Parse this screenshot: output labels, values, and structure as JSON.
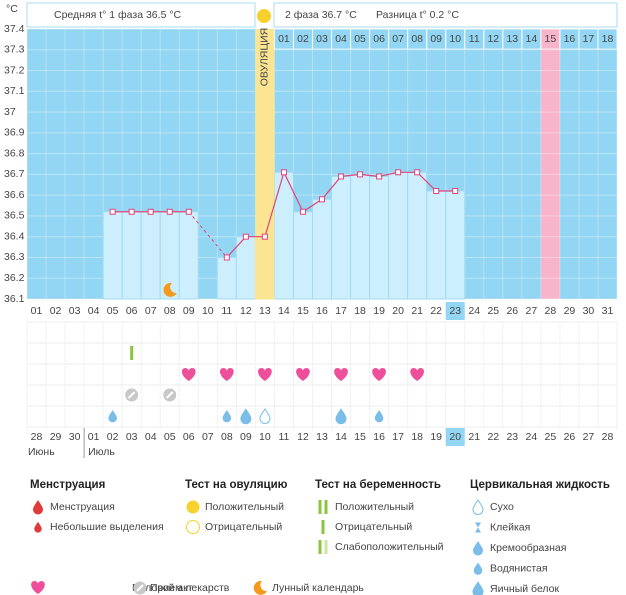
{
  "header": {
    "phase1": "Средняя t° 1 фаза 36.5 °C",
    "phase2": "2 фаза 36.7 °C",
    "difference": "Разница t° 0.2 °C"
  },
  "chart_data": {
    "type": "line",
    "y_unit": "°C",
    "ovulation_label": "ОВУЛЯЦИЯ",
    "ovulation_x": "13",
    "x": [
      "01",
      "02",
      "03",
      "04",
      "05",
      "06",
      "07",
      "08",
      "09",
      "10",
      "11",
      "12",
      "13",
      "14",
      "15",
      "16",
      "17",
      "18",
      "19",
      "20",
      "21",
      "22",
      "23",
      "24",
      "25",
      "26",
      "27",
      "28",
      "29",
      "30",
      "31"
    ],
    "values": [
      null,
      null,
      null,
      null,
      36.52,
      36.52,
      36.52,
      36.52,
      36.52,
      null,
      36.3,
      36.4,
      36.4,
      36.71,
      36.52,
      36.58,
      36.69,
      36.7,
      36.69,
      36.71,
      36.71,
      36.62,
      36.62,
      null,
      null,
      null,
      null,
      null,
      null,
      null,
      null
    ],
    "color": "#e0457b",
    "bar_color": "#cdeefc",
    "background": "#93d6f3",
    "ylim": [
      36.1,
      37.4
    ],
    "yticks": [
      36.1,
      36.2,
      36.3,
      36.4,
      36.5,
      36.6,
      36.7,
      36.8,
      36.9,
      37,
      37.1,
      37.2,
      37.3,
      37.4
    ],
    "grid": true,
    "highlighted_x": "23",
    "phase2_start_x": "14",
    "phase2_days": [
      "01",
      "02",
      "03",
      "04",
      "05",
      "06",
      "07",
      "08",
      "09",
      "10",
      "11",
      "12",
      "13",
      "14",
      "15",
      "16",
      "17",
      "18"
    ],
    "marked_phase2_day": "15"
  },
  "dates": {
    "labels": [
      "28",
      "29",
      "30",
      "01",
      "02",
      "03",
      "04",
      "05",
      "06",
      "07",
      "08",
      "09",
      "10",
      "11",
      "12",
      "13",
      "14",
      "15",
      "16",
      "17",
      "18",
      "19",
      "20",
      "21",
      "22",
      "23",
      "24",
      "25",
      "26",
      "27",
      "28"
    ],
    "weekend": [
      false,
      true,
      true,
      false,
      false,
      false,
      false,
      false,
      true,
      true,
      false,
      false,
      false,
      false,
      false,
      true,
      true,
      false,
      false,
      false,
      false,
      false,
      true,
      true,
      false,
      false,
      false,
      false,
      false,
      true,
      true
    ],
    "highlighted": "20",
    "months": [
      "Июнь",
      "Июль"
    ]
  },
  "legend": {
    "menstruation": {
      "title": "Менструация",
      "items": [
        {
          "label": "Менструация"
        },
        {
          "label": "Небольшие выделения"
        }
      ]
    },
    "ovulation_test": {
      "title": "Тест на овуляцию",
      "items": [
        {
          "label": "Положительный"
        },
        {
          "label": "Отрицательный"
        }
      ]
    },
    "pregnancy_test": {
      "title": "Тест на беременность",
      "items": [
        {
          "label": "Положительный"
        },
        {
          "label": "Отрицательный",
          "days": [
            "06"
          ]
        },
        {
          "label": "Слабоположительный"
        }
      ]
    },
    "cervical_fluid": {
      "title": "Цервикальная жидкость",
      "items": [
        {
          "label": "Сухо",
          "days": [
            "13"
          ]
        },
        {
          "label": "Клейкая"
        },
        {
          "label": "Кремообразная"
        },
        {
          "label": "Водянистая",
          "days": [
            "05",
            "11",
            "19"
          ]
        },
        {
          "label": "Яичный белок",
          "days": [
            "12",
            "17"
          ]
        }
      ]
    },
    "other": {
      "items": [
        {
          "label": "Половой акт",
          "days": [
            "09",
            "11",
            "13",
            "15",
            "17",
            "19",
            "21"
          ]
        },
        {
          "label": "Прием лекарств",
          "days": [
            "06",
            "08"
          ]
        },
        {
          "label": "Лунный календарь",
          "days": [
            "08"
          ]
        }
      ]
    }
  }
}
